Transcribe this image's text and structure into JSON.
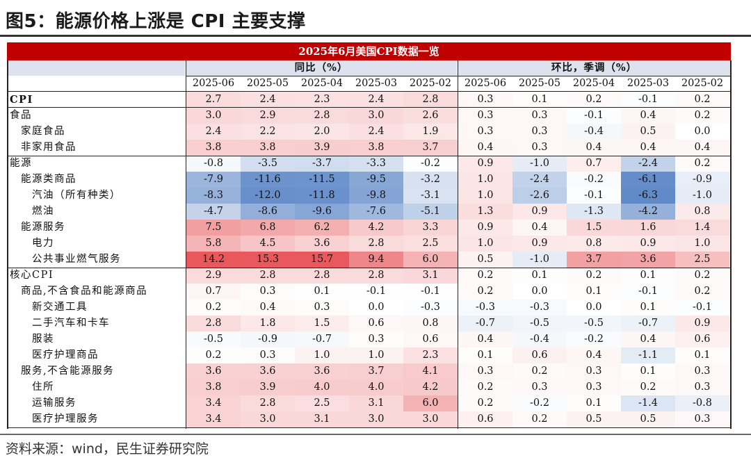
{
  "title": "图5：能源价格上涨是 CPI 主要支撑",
  "table": {
    "banner": "2025年6月美国CPI数据一览",
    "group_yoy": "同比（%）",
    "group_mom": "环比，季调（%）",
    "months": [
      "2025-06",
      "2025-05",
      "2025-04",
      "2025-03",
      "2025-02"
    ],
    "rows": [
      {
        "label": "CPI",
        "indent": 0,
        "bold": true,
        "yoy": [
          "2.7",
          "2.4",
          "2.3",
          "2.4",
          "2.8"
        ],
        "mom": [
          "0.3",
          "0.1",
          "0.2",
          "-0.1",
          "0.2"
        ]
      },
      {
        "label": "食品",
        "indent": 0,
        "bold": false,
        "yoy": [
          "3.0",
          "2.9",
          "2.8",
          "3.0",
          "2.6"
        ],
        "mom": [
          "0.3",
          "0.3",
          "-0.1",
          "0.4",
          "0.2"
        ]
      },
      {
        "label": "家庭食品",
        "indent": 1,
        "bold": false,
        "yoy": [
          "2.4",
          "2.2",
          "2.0",
          "2.4",
          "1.9"
        ],
        "mom": [
          "0.3",
          "0.3",
          "-0.4",
          "0.5",
          "0.0"
        ]
      },
      {
        "label": "非家用食品",
        "indent": 1,
        "bold": false,
        "yoy": [
          "3.8",
          "3.8",
          "3.9",
          "3.8",
          "3.7"
        ],
        "mom": [
          "0.4",
          "0.3",
          "0.4",
          "0.4",
          "0.4"
        ]
      },
      {
        "label": "能源",
        "indent": 0,
        "bold": false,
        "section": true,
        "yoy": [
          "-0.8",
          "-3.5",
          "-3.7",
          "-3.3",
          "-0.2"
        ],
        "mom": [
          "0.9",
          "-1.0",
          "0.7",
          "-2.4",
          "0.2"
        ]
      },
      {
        "label": "能源类商品",
        "indent": 1,
        "bold": false,
        "yoy": [
          "-7.9",
          "-11.6",
          "-11.5",
          "-9.5",
          "-3.2"
        ],
        "mom": [
          "1.0",
          "-2.4",
          "-0.2",
          "-6.1",
          "-0.9"
        ]
      },
      {
        "label": "汽油（所有种类）",
        "indent": 2,
        "bold": false,
        "yoy": [
          "-8.3",
          "-12.0",
          "-11.8",
          "-9.8",
          "-3.1"
        ],
        "mom": [
          "1.0",
          "-2.6",
          "-0.1",
          "-6.3",
          "-1.0"
        ]
      },
      {
        "label": "燃油",
        "indent": 2,
        "bold": false,
        "yoy": [
          "-4.7",
          "-8.6",
          "-9.6",
          "-7.6",
          "-5.1"
        ],
        "mom": [
          "1.3",
          "0.9",
          "-1.3",
          "-4.2",
          "0.8"
        ]
      },
      {
        "label": "能源服务",
        "indent": 1,
        "bold": false,
        "yoy": [
          "7.5",
          "6.8",
          "6.2",
          "4.2",
          "3.3"
        ],
        "mom": [
          "0.9",
          "0.4",
          "1.5",
          "1.6",
          "1.4"
        ]
      },
      {
        "label": "电力",
        "indent": 2,
        "bold": false,
        "yoy": [
          "5.8",
          "4.5",
          "3.6",
          "2.8",
          "2.5"
        ],
        "mom": [
          "1.0",
          "0.9",
          "0.8",
          "0.9",
          "1.0"
        ]
      },
      {
        "label": "公共事业燃气服务",
        "indent": 2,
        "bold": false,
        "yoy": [
          "14.2",
          "15.3",
          "15.7",
          "9.4",
          "6.0"
        ],
        "mom": [
          "0.5",
          "-1.0",
          "3.7",
          "3.6",
          "2.5"
        ]
      },
      {
        "label": "核心CPI",
        "indent": 0,
        "bold": false,
        "section": true,
        "yoy": [
          "2.9",
          "2.8",
          "2.8",
          "2.8",
          "3.1"
        ],
        "mom": [
          "0.2",
          "0.1",
          "0.2",
          "0.1",
          "0.2"
        ]
      },
      {
        "label": "商品,不含食品和能源商品",
        "indent": 1,
        "bold": false,
        "yoy": [
          "0.7",
          "0.3",
          "0.1",
          "-0.1",
          "-0.1"
        ],
        "mom": [
          "0.2",
          "0.0",
          "0.1",
          "-0.1",
          "0.2"
        ]
      },
      {
        "label": "新交通工具",
        "indent": 2,
        "bold": false,
        "yoy": [
          "0.2",
          "0.4",
          "0.3",
          "0.0",
          "-0.3"
        ],
        "mom": [
          "-0.3",
          "-0.3",
          "0.0",
          "0.1",
          "-0.1"
        ]
      },
      {
        "label": "二手汽车和卡车",
        "indent": 2,
        "bold": false,
        "yoy": [
          "2.8",
          "1.8",
          "1.5",
          "0.6",
          "0.8"
        ],
        "mom": [
          "-0.7",
          "-0.5",
          "-0.5",
          "-0.7",
          "0.9"
        ]
      },
      {
        "label": "服装",
        "indent": 2,
        "bold": false,
        "yoy": [
          "-0.5",
          "-0.9",
          "-0.7",
          "0.3",
          "0.6"
        ],
        "mom": [
          "0.4",
          "-0.4",
          "-0.2",
          "0.4",
          "0.6"
        ]
      },
      {
        "label": "医疗护理商品",
        "indent": 2,
        "bold": false,
        "yoy": [
          "0.2",
          "0.3",
          "1.0",
          "1.0",
          "2.3"
        ],
        "mom": [
          "0.1",
          "0.6",
          "0.4",
          "-1.1",
          "0.1"
        ]
      },
      {
        "label": "服务,不含能源服务",
        "indent": 1,
        "bold": false,
        "yoy": [
          "3.6",
          "3.6",
          "3.6",
          "3.7",
          "4.1"
        ],
        "mom": [
          "0.3",
          "0.2",
          "0.3",
          "0.1",
          "0.3"
        ]
      },
      {
        "label": "住所",
        "indent": 2,
        "bold": false,
        "yoy": [
          "3.8",
          "3.9",
          "4.0",
          "4.0",
          "4.2"
        ],
        "mom": [
          "0.2",
          "0.3",
          "0.3",
          "0.2",
          "0.3"
        ]
      },
      {
        "label": "运输服务",
        "indent": 2,
        "bold": false,
        "yoy": [
          "3.4",
          "2.8",
          "2.5",
          "3.1",
          "6.0"
        ],
        "mom": [
          "0.2",
          "-0.2",
          "0.1",
          "-1.4",
          "-0.8"
        ]
      },
      {
        "label": "医疗护理服务",
        "indent": 2,
        "bold": false,
        "yoy": [
          "3.4",
          "3.0",
          "3.1",
          "3.0",
          "3.0"
        ],
        "mom": [
          "0.6",
          "0.2",
          "0.5",
          "0.5",
          "0.3"
        ]
      }
    ]
  },
  "source": "资料来源：wind，民生证券研究院",
  "colors": {
    "banner": "#c00000",
    "header_bg": "#dde3ee",
    "neg_max": "#5b86c6",
    "pos_max": "#e8585c"
  }
}
